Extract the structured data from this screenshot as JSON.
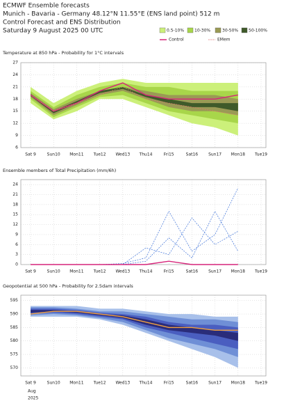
{
  "header": {
    "title": "ECMWF Ensemble forecasts",
    "location": "Munich - Bavaria - Germany 48.12°N 11.55°E (ENS land point) 512 m",
    "subtitle": "Control Forecast and ENS Distribution",
    "date": "Saturday  9 August 2025 00 UTC"
  },
  "chart_data": [
    {
      "type": "band",
      "title": "Temperature at 850 hPa - Probability for 1°C intervals",
      "categories": [
        "Sat 9",
        "Sun10",
        "Mon11",
        "Tue12",
        "Wed13",
        "Thu14",
        "Fri15",
        "Sat16",
        "Sun17",
        "Mon18",
        "Tue19"
      ],
      "highlight": [
        1,
        8
      ],
      "highlight_color": "#cc0000",
      "ylim": [
        6,
        27
      ],
      "yticks": [
        6,
        9,
        12,
        15,
        18,
        21,
        24,
        27
      ],
      "grid": true,
      "series": [
        {
          "name": "0.5-10%",
          "color": "#ccf07a",
          "low": [
            17,
            13,
            15,
            18,
            18,
            16,
            14,
            12,
            11,
            9,
            null
          ],
          "high": [
            21,
            17,
            20,
            22,
            23,
            22,
            22,
            22,
            22,
            22,
            null
          ]
        },
        {
          "name": "10-30%",
          "color": "#a8d64a",
          "low": [
            18,
            13.5,
            16,
            18.5,
            19,
            17,
            15,
            14,
            13,
            12,
            null
          ],
          "high": [
            20,
            16,
            19,
            21,
            22,
            21,
            21,
            20,
            20,
            20,
            null
          ]
        },
        {
          "name": "30-50%",
          "color": "#9a9a55",
          "low": [
            18.5,
            14,
            16.5,
            19,
            20,
            18,
            16,
            15,
            15,
            14,
            null
          ],
          "high": [
            19.5,
            15.5,
            18,
            20,
            21,
            20,
            19,
            19,
            19,
            18,
            null
          ]
        },
        {
          "name": "50-100%",
          "color": "#3f5a2a",
          "low": [
            18.8,
            14.5,
            17,
            19.5,
            20.5,
            18.5,
            17,
            16,
            16,
            15,
            null
          ],
          "high": [
            19.2,
            15,
            17.5,
            20,
            21,
            19,
            18,
            17,
            17,
            17,
            null
          ]
        },
        {
          "name": "Control",
          "color": "#d6247a",
          "values": [
            19,
            15,
            17,
            20,
            22,
            19,
            18,
            18,
            18,
            19,
            null
          ]
        },
        {
          "name": "EMem",
          "color": "#e07070",
          "dashed": true,
          "values": [
            19,
            15,
            17,
            19,
            21,
            18,
            17,
            16,
            15,
            14,
            null
          ]
        }
      ]
    },
    {
      "type": "band",
      "title": "Ensemble members of Total Precipitation (mm/6h)",
      "categories": [
        "Sat 9",
        "Sun10",
        "Mon11",
        "Tue12",
        "Wed13",
        "Thu14",
        "Fri15",
        "Sat16",
        "Sun17",
        "Mon18",
        "Tue19"
      ],
      "highlight": [
        1,
        8
      ],
      "highlight_color": "#cc0000",
      "ylim": [
        0,
        25.5
      ],
      "yticks": [
        0,
        3,
        6,
        9,
        12,
        15,
        18,
        21,
        24
      ],
      "grid": true,
      "series": [
        {
          "color": "#3a6fd8",
          "dashed": true,
          "values": [
            0,
            0,
            0,
            0,
            0.3,
            2,
            16,
            4,
            9,
            23,
            null
          ]
        },
        {
          "color": "#3a6fd8",
          "dashed": true,
          "values": [
            0,
            0,
            0,
            0,
            0,
            5,
            3,
            14,
            6,
            10,
            null
          ]
        },
        {
          "color": "#3a6fd8",
          "dashed": true,
          "values": [
            0,
            0,
            0,
            0,
            0,
            1,
            8,
            2,
            16,
            4,
            null
          ]
        },
        {
          "color": "#d6247a",
          "values": [
            0,
            0,
            0,
            0,
            0,
            0,
            1,
            0,
            0,
            0,
            null
          ]
        }
      ]
    },
    {
      "type": "band",
      "title": "Geopotential at 500 hPa - Probability for 2.5dam intervals",
      "categories": [
        "Sat 9",
        "Sun10",
        "Mon11",
        "Tue12",
        "Wed13",
        "Thu14",
        "Fri15",
        "Sat16",
        "Sun17",
        "Mon18",
        "Tue19"
      ],
      "highlight": [
        1,
        8
      ],
      "highlight_color": "#cc0000",
      "footer": [
        "Aug",
        "2025"
      ],
      "ylim": [
        567,
        597
      ],
      "yticks": [
        570,
        575,
        580,
        585,
        590,
        595
      ],
      "grid": true,
      "series": [
        {
          "color": "#a8c0ea",
          "low": [
            589,
            589,
            589,
            588,
            586,
            583,
            580,
            577,
            574,
            570,
            null
          ],
          "high": [
            593,
            593,
            593,
            592,
            592,
            591,
            590,
            590,
            589,
            589,
            null
          ]
        },
        {
          "color": "#6f8fd6",
          "low": [
            589.5,
            590,
            589.5,
            588.5,
            587,
            584,
            581,
            579,
            577,
            574,
            null
          ],
          "high": [
            592.5,
            592.5,
            592,
            591,
            591,
            590,
            589,
            588,
            588,
            587,
            null
          ]
        },
        {
          "color": "#4a5ec0",
          "low": [
            590,
            590.5,
            590,
            589,
            588,
            585,
            583,
            581,
            579,
            577,
            null
          ],
          "high": [
            592,
            592,
            591.5,
            590.5,
            590,
            589,
            587,
            586,
            586,
            585,
            null
          ]
        },
        {
          "color": "#2a2c7a",
          "low": [
            590.5,
            591,
            590.5,
            589.5,
            588.5,
            586,
            584,
            583,
            582,
            580,
            null
          ],
          "high": [
            591.5,
            591.5,
            591,
            590,
            589.5,
            588,
            586,
            585,
            584,
            583,
            null
          ]
        },
        {
          "color": "#f0a040",
          "values": [
            590,
            591,
            591,
            590,
            589,
            587,
            585,
            585,
            584,
            584,
            null
          ]
        }
      ]
    }
  ]
}
